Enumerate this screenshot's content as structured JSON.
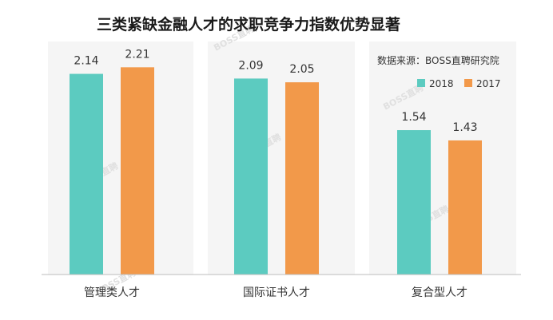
{
  "chart_data": {
    "type": "bar",
    "title": "三类紧缺金融人才的求职竞争力指数优势显著",
    "source": "数据来源：BOSS直聘研究院",
    "categories": [
      "管理类人才",
      "国际证书人才",
      "复合型人才"
    ],
    "series": [
      {
        "name": "2018",
        "color": "#5ccbc0",
        "values": [
          2.14,
          2.09,
          1.54
        ],
        "labels": [
          "2.14",
          "2.09",
          "1.54"
        ]
      },
      {
        "name": "2017",
        "color": "#f2994a",
        "values": [
          2.21,
          2.05,
          1.43
        ],
        "labels": [
          "2.21",
          "2.05",
          "1.43"
        ]
      }
    ],
    "ylim": [
      0,
      2.6
    ],
    "legend_position": "top-right",
    "grid": false,
    "watermark": "BOSS直聘",
    "colors": {
      "panel_background": "#f5f5f5",
      "baseline": "#bdbdbd"
    }
  }
}
